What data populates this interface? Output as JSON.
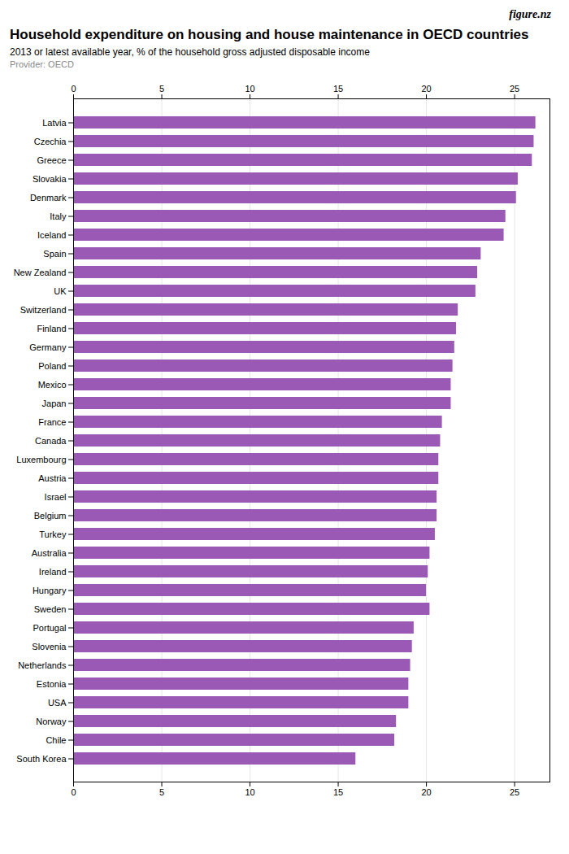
{
  "chart_data": {
    "type": "bar",
    "orientation": "horizontal",
    "title": "Household expenditure on housing and house maintenance in OECD countries",
    "subtitle": "2013 or latest available year, % of the household gross adjusted disposable income",
    "annotations": [
      "figure.nz",
      "Provider: OECD"
    ],
    "categories": [
      "Latvia",
      "Czechia",
      "Greece",
      "Slovakia",
      "Denmark",
      "Italy",
      "Iceland",
      "Spain",
      "New Zealand",
      "UK",
      "Switzerland",
      "Finland",
      "Germany",
      "Poland",
      "Mexico",
      "Japan",
      "France",
      "Canada",
      "Luxembourg",
      "Austria",
      "Israel",
      "Belgium",
      "Turkey",
      "Australia",
      "Ireland",
      "Hungary",
      "Sweden",
      "Portugal",
      "Slovenia",
      "Netherlands",
      "Estonia",
      "USA",
      "Norway",
      "Chile",
      "South Korea"
    ],
    "values": [
      26.2,
      26.1,
      26.0,
      25.2,
      25.1,
      24.5,
      24.4,
      23.1,
      22.9,
      22.8,
      21.8,
      21.7,
      21.6,
      21.5,
      21.4,
      21.4,
      20.9,
      20.8,
      20.7,
      20.7,
      20.6,
      20.6,
      20.5,
      20.2,
      20.1,
      20.0,
      20.2,
      19.3,
      19.2,
      19.1,
      19.0,
      19.0,
      18.3,
      18.2,
      16.0
    ],
    "color": "#9b59b6",
    "xlim": [
      0,
      27
    ],
    "xticks": [
      0,
      5,
      10,
      15,
      20,
      25
    ],
    "grid": true
  }
}
